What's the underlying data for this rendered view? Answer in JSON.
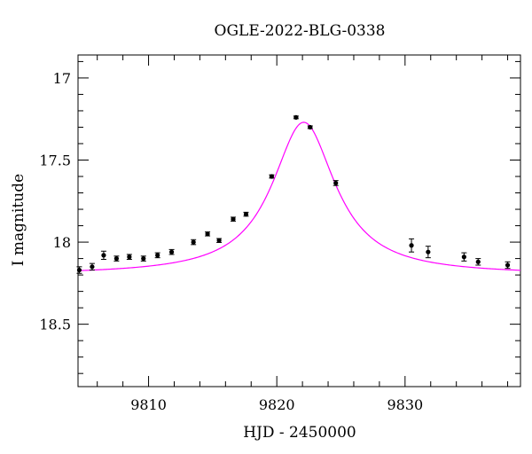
{
  "chart_data": {
    "type": "scatter",
    "title": "OGLE-2022-BLG-0338",
    "xlabel": "HJD - 2450000",
    "ylabel": "I magnitude",
    "xlim": [
      9804.5,
      9839.0
    ],
    "ylim": [
      18.88,
      16.86
    ],
    "y_inverted": true,
    "x_ticks": [
      9810,
      9820,
      9830
    ],
    "y_ticks": [
      17,
      17.5,
      18,
      18.5
    ],
    "grid": false,
    "legend": "none",
    "series": [
      {
        "kind": "points_with_errorbars",
        "color": "#000000",
        "points": [
          {
            "x": 9804.6,
            "y": 18.17,
            "err": 0.02
          },
          {
            "x": 9805.6,
            "y": 18.15,
            "err": 0.02
          },
          {
            "x": 9806.5,
            "y": 18.08,
            "err": 0.025
          },
          {
            "x": 9807.5,
            "y": 18.1,
            "err": 0.015
          },
          {
            "x": 9808.5,
            "y": 18.09,
            "err": 0.015
          },
          {
            "x": 9809.6,
            "y": 18.1,
            "err": 0.015
          },
          {
            "x": 9810.7,
            "y": 18.08,
            "err": 0.015
          },
          {
            "x": 9811.8,
            "y": 18.06,
            "err": 0.015
          },
          {
            "x": 9813.5,
            "y": 18.0,
            "err": 0.015
          },
          {
            "x": 9814.6,
            "y": 17.95,
            "err": 0.012
          },
          {
            "x": 9815.5,
            "y": 17.99,
            "err": 0.012
          },
          {
            "x": 9816.6,
            "y": 17.86,
            "err": 0.012
          },
          {
            "x": 9817.6,
            "y": 17.83,
            "err": 0.012
          },
          {
            "x": 9819.6,
            "y": 17.6,
            "err": 0.01
          },
          {
            "x": 9821.5,
            "y": 17.24,
            "err": 0.008
          },
          {
            "x": 9822.6,
            "y": 17.3,
            "err": 0.008
          },
          {
            "x": 9824.6,
            "y": 17.64,
            "err": 0.015
          },
          {
            "x": 9830.5,
            "y": 18.02,
            "err": 0.04
          },
          {
            "x": 9831.8,
            "y": 18.06,
            "err": 0.035
          },
          {
            "x": 9834.6,
            "y": 18.09,
            "err": 0.025
          },
          {
            "x": 9835.7,
            "y": 18.12,
            "err": 0.02
          },
          {
            "x": 9838.0,
            "y": 18.14,
            "err": 0.02
          }
        ]
      },
      {
        "kind": "model_curve",
        "color": "#ff00ff",
        "model": {
          "t0": 9822.1,
          "base_mag": 18.2,
          "peak_mag": 17.27,
          "width": 3.0
        }
      }
    ]
  }
}
